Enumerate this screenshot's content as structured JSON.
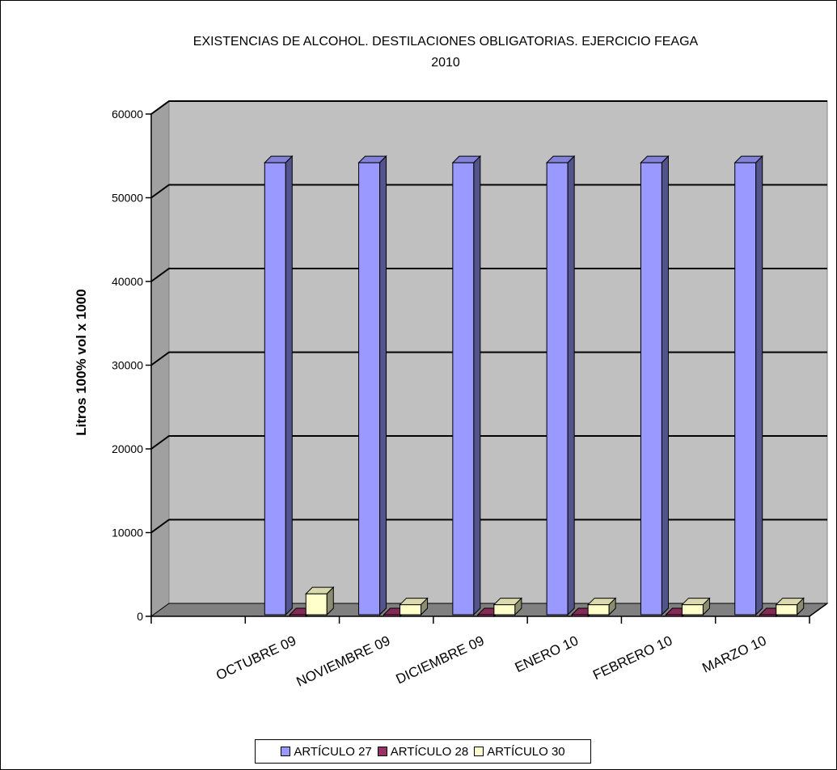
{
  "chart_data": {
    "type": "bar",
    "title": "EXISTENCIAS DE ALCOHOL. DESTILACIONES OBLIGATORIAS. EJERCICIO FEAGA\n2010",
    "ylabel": "Litros 100% vol x 1000",
    "xlabel": "",
    "ylim": [
      0,
      60000
    ],
    "yticks": [
      0,
      10000,
      20000,
      30000,
      40000,
      50000,
      60000
    ],
    "categories": [
      "",
      "OCTUBRE 09",
      "NOVIEMBRE 09",
      "DICIEMBRE 09",
      "ENERO 10",
      "FEBRERO 10",
      "MARZO 10"
    ],
    "series": [
      {
        "name": "ARTÍCULO 27",
        "values": [
          null,
          54000,
          54000,
          54000,
          54000,
          54000,
          54000
        ],
        "color": "#9999ff"
      },
      {
        "name": "ARTÍCULO 28",
        "values": [
          null,
          0,
          0,
          0,
          0,
          0,
          0
        ],
        "color": "#993366"
      },
      {
        "name": "ARTÍCULO 30",
        "values": [
          null,
          2500,
          1200,
          1200,
          1200,
          1200,
          1200
        ],
        "color": "#ffffcc"
      }
    ],
    "grid": true,
    "legend_position": "bottom",
    "three_d": true
  }
}
